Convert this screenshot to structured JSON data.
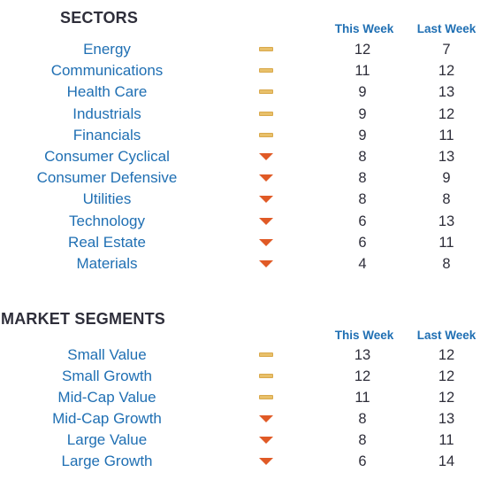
{
  "sectors": {
    "title": "SECTORS",
    "col_this_week": "This Week",
    "col_last_week": "Last Week",
    "rows": [
      {
        "name": "Energy",
        "trend": "flat",
        "this_week": "12",
        "last_week": "7"
      },
      {
        "name": "Communications",
        "trend": "flat",
        "this_week": "11",
        "last_week": "12"
      },
      {
        "name": "Health Care",
        "trend": "flat",
        "this_week": "9",
        "last_week": "13"
      },
      {
        "name": "Industrials",
        "trend": "flat",
        "this_week": "9",
        "last_week": "12"
      },
      {
        "name": "Financials",
        "trend": "flat",
        "this_week": "9",
        "last_week": "11"
      },
      {
        "name": "Consumer Cyclical",
        "trend": "down",
        "this_week": "8",
        "last_week": "13"
      },
      {
        "name": "Consumer Defensive",
        "trend": "down",
        "this_week": "8",
        "last_week": "9"
      },
      {
        "name": "Utilities",
        "trend": "down",
        "this_week": "8",
        "last_week": "8"
      },
      {
        "name": "Technology",
        "trend": "down",
        "this_week": "6",
        "last_week": "13"
      },
      {
        "name": "Real Estate",
        "trend": "down",
        "this_week": "6",
        "last_week": "11"
      },
      {
        "name": "Materials",
        "trend": "down",
        "this_week": "4",
        "last_week": "8"
      }
    ]
  },
  "segments": {
    "title": "MARKET SEGMENTS",
    "col_this_week": "This Week",
    "col_last_week": "Last Week",
    "rows": [
      {
        "name": "Small Value",
        "trend": "flat",
        "this_week": "13",
        "last_week": "12"
      },
      {
        "name": "Small Growth",
        "trend": "flat",
        "this_week": "12",
        "last_week": "12"
      },
      {
        "name": "Mid-Cap Value",
        "trend": "flat",
        "this_week": "11",
        "last_week": "12"
      },
      {
        "name": "Mid-Cap Growth",
        "trend": "down",
        "this_week": "8",
        "last_week": "13"
      },
      {
        "name": "Large Value",
        "trend": "down",
        "this_week": "8",
        "last_week": "11"
      },
      {
        "name": "Large Growth",
        "trend": "down",
        "this_week": "6",
        "last_week": "14"
      }
    ]
  },
  "colors": {
    "label_blue": "#1f6fb3",
    "flat_indicator": "#e8c06a",
    "down_indicator": "#e05a26",
    "value_text": "#2e2e3a"
  }
}
